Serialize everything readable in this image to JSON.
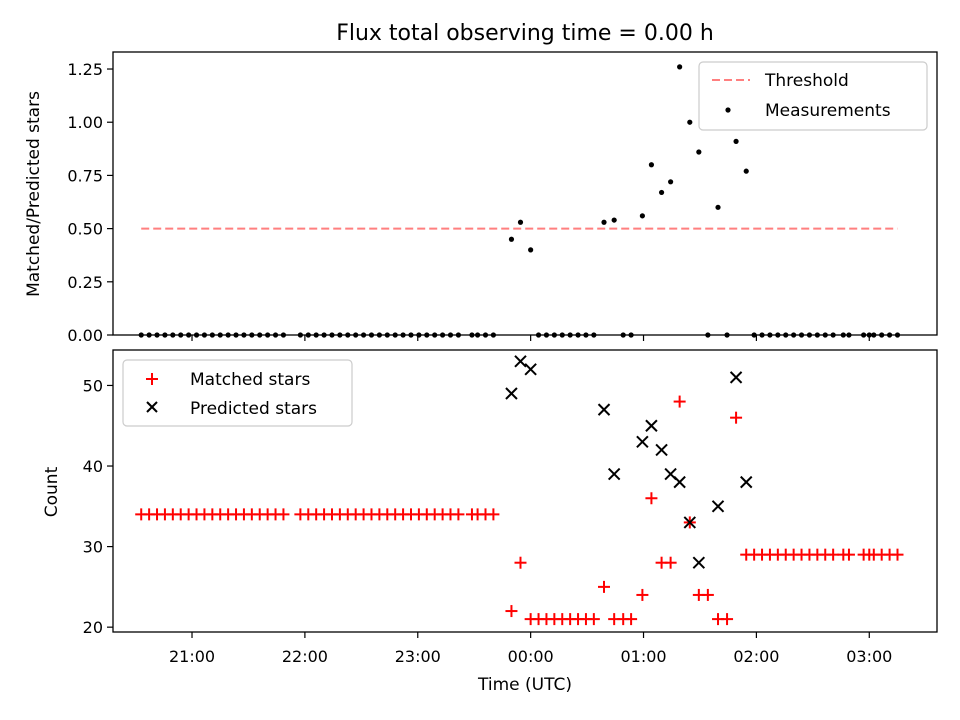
{
  "figure": {
    "title": "Flux total observing time = 0.00 h"
  },
  "chart_data": [
    {
      "type": "scatter",
      "ylabel": "Matched/Predicted stars",
      "ylim": [
        0,
        1.33
      ],
      "yticks": [
        0.0,
        0.25,
        0.5,
        0.75,
        1.0,
        1.25
      ],
      "ytick_labels": [
        "0.00",
        "0.25",
        "0.50",
        "0.75",
        "1.00",
        "1.25"
      ],
      "xlim_hours": [
        20.3,
        27.6
      ],
      "legend_placement": "upper right",
      "threshold": {
        "name": "Threshold",
        "color": "#ff7f7f",
        "value": 0.5,
        "x_start": 20.55,
        "x_end": 27.25
      },
      "series": [
        {
          "name": "Measurements",
          "color": "#000000",
          "marker": "dot",
          "points": [
            [
              20.55,
              0
            ],
            [
              20.62,
              0
            ],
            [
              20.69,
              0
            ],
            [
              20.76,
              0
            ],
            [
              20.83,
              0
            ],
            [
              20.9,
              0
            ],
            [
              20.97,
              0
            ],
            [
              21.04,
              0
            ],
            [
              21.11,
              0
            ],
            [
              21.18,
              0
            ],
            [
              21.25,
              0
            ],
            [
              21.32,
              0
            ],
            [
              21.39,
              0
            ],
            [
              21.46,
              0
            ],
            [
              21.53,
              0
            ],
            [
              21.6,
              0
            ],
            [
              21.67,
              0
            ],
            [
              21.74,
              0
            ],
            [
              21.81,
              0
            ],
            [
              21.96,
              0
            ],
            [
              22.03,
              0
            ],
            [
              22.1,
              0
            ],
            [
              22.17,
              0
            ],
            [
              22.24,
              0
            ],
            [
              22.31,
              0
            ],
            [
              22.38,
              0
            ],
            [
              22.45,
              0
            ],
            [
              22.52,
              0
            ],
            [
              22.59,
              0
            ],
            [
              22.66,
              0
            ],
            [
              22.73,
              0
            ],
            [
              22.8,
              0
            ],
            [
              22.87,
              0
            ],
            [
              22.94,
              0
            ],
            [
              23.01,
              0
            ],
            [
              23.08,
              0
            ],
            [
              23.15,
              0
            ],
            [
              23.22,
              0
            ],
            [
              23.29,
              0
            ],
            [
              23.36,
              0
            ],
            [
              23.48,
              0
            ],
            [
              23.53,
              0
            ],
            [
              23.6,
              0
            ],
            [
              23.67,
              0
            ],
            [
              23.83,
              0.45
            ],
            [
              23.91,
              0.53
            ],
            [
              24.0,
              0.4
            ],
            [
              24.07,
              0
            ],
            [
              24.14,
              0
            ],
            [
              24.21,
              0
            ],
            [
              24.28,
              0
            ],
            [
              24.35,
              0
            ],
            [
              24.42,
              0
            ],
            [
              24.49,
              0
            ],
            [
              24.56,
              0
            ],
            [
              24.65,
              0.53
            ],
            [
              24.74,
              0.54
            ],
            [
              24.82,
              0
            ],
            [
              24.89,
              0
            ],
            [
              24.99,
              0.56
            ],
            [
              25.07,
              0.8
            ],
            [
              25.16,
              0.67
            ],
            [
              25.24,
              0.72
            ],
            [
              25.32,
              1.26
            ],
            [
              25.41,
              1.0
            ],
            [
              25.49,
              0.86
            ],
            [
              25.57,
              0
            ],
            [
              25.66,
              0.6
            ],
            [
              25.74,
              0
            ],
            [
              25.82,
              0.91
            ],
            [
              25.91,
              0.77
            ],
            [
              25.98,
              0
            ],
            [
              26.05,
              0
            ],
            [
              26.12,
              0
            ],
            [
              26.19,
              0
            ],
            [
              26.26,
              0
            ],
            [
              26.33,
              0
            ],
            [
              26.4,
              0
            ],
            [
              26.47,
              0
            ],
            [
              26.54,
              0
            ],
            [
              26.61,
              0
            ],
            [
              26.68,
              0
            ],
            [
              26.77,
              0
            ],
            [
              26.82,
              0
            ],
            [
              26.95,
              0
            ],
            [
              27.0,
              0
            ],
            [
              27.04,
              0
            ],
            [
              27.11,
              0
            ],
            [
              27.18,
              0
            ],
            [
              27.25,
              0
            ]
          ]
        }
      ]
    },
    {
      "type": "scatter",
      "ylabel": "Count",
      "xlabel": "Time (UTC)",
      "ylim": [
        19.4,
        54.4
      ],
      "yticks": [
        20,
        30,
        40,
        50
      ],
      "ytick_labels": [
        "20",
        "30",
        "40",
        "50"
      ],
      "xlim_hours": [
        20.3,
        27.6
      ],
      "xticks_hours": [
        21,
        22,
        23,
        24,
        25,
        26,
        27
      ],
      "xtick_labels": [
        "21:00",
        "22:00",
        "23:00",
        "00:00",
        "01:00",
        "02:00",
        "03:00"
      ],
      "legend_placement": "upper left",
      "series": [
        {
          "name": "Matched stars",
          "color": "#ff0000",
          "marker": "plus",
          "points": [
            [
              20.55,
              34
            ],
            [
              20.62,
              34
            ],
            [
              20.69,
              34
            ],
            [
              20.76,
              34
            ],
            [
              20.83,
              34
            ],
            [
              20.9,
              34
            ],
            [
              20.97,
              34
            ],
            [
              21.04,
              34
            ],
            [
              21.11,
              34
            ],
            [
              21.18,
              34
            ],
            [
              21.25,
              34
            ],
            [
              21.32,
              34
            ],
            [
              21.39,
              34
            ],
            [
              21.46,
              34
            ],
            [
              21.53,
              34
            ],
            [
              21.6,
              34
            ],
            [
              21.67,
              34
            ],
            [
              21.74,
              34
            ],
            [
              21.81,
              34
            ],
            [
              21.96,
              34
            ],
            [
              22.03,
              34
            ],
            [
              22.1,
              34
            ],
            [
              22.17,
              34
            ],
            [
              22.24,
              34
            ],
            [
              22.31,
              34
            ],
            [
              22.38,
              34
            ],
            [
              22.45,
              34
            ],
            [
              22.52,
              34
            ],
            [
              22.59,
              34
            ],
            [
              22.66,
              34
            ],
            [
              22.73,
              34
            ],
            [
              22.8,
              34
            ],
            [
              22.87,
              34
            ],
            [
              22.94,
              34
            ],
            [
              23.01,
              34
            ],
            [
              23.08,
              34
            ],
            [
              23.15,
              34
            ],
            [
              23.22,
              34
            ],
            [
              23.29,
              34
            ],
            [
              23.36,
              34
            ],
            [
              23.48,
              34
            ],
            [
              23.53,
              34
            ],
            [
              23.6,
              34
            ],
            [
              23.67,
              34
            ],
            [
              23.83,
              22
            ],
            [
              23.91,
              28
            ],
            [
              24.0,
              21
            ],
            [
              24.07,
              21
            ],
            [
              24.14,
              21
            ],
            [
              24.21,
              21
            ],
            [
              24.28,
              21
            ],
            [
              24.35,
              21
            ],
            [
              24.42,
              21
            ],
            [
              24.49,
              21
            ],
            [
              24.56,
              21
            ],
            [
              24.65,
              25
            ],
            [
              24.74,
              21
            ],
            [
              24.82,
              21
            ],
            [
              24.89,
              21
            ],
            [
              24.99,
              24
            ],
            [
              25.07,
              36
            ],
            [
              25.16,
              28
            ],
            [
              25.24,
              28
            ],
            [
              25.32,
              48
            ],
            [
              25.41,
              33
            ],
            [
              25.49,
              24
            ],
            [
              25.57,
              24
            ],
            [
              25.66,
              21
            ],
            [
              25.74,
              21
            ],
            [
              25.82,
              46
            ],
            [
              25.91,
              29
            ],
            [
              25.98,
              29
            ],
            [
              26.05,
              29
            ],
            [
              26.12,
              29
            ],
            [
              26.19,
              29
            ],
            [
              26.26,
              29
            ],
            [
              26.33,
              29
            ],
            [
              26.4,
              29
            ],
            [
              26.47,
              29
            ],
            [
              26.54,
              29
            ],
            [
              26.61,
              29
            ],
            [
              26.68,
              29
            ],
            [
              26.77,
              29
            ],
            [
              26.82,
              29
            ],
            [
              26.95,
              29
            ],
            [
              27.0,
              29
            ],
            [
              27.04,
              29
            ],
            [
              27.11,
              29
            ],
            [
              27.18,
              29
            ],
            [
              27.25,
              29
            ]
          ]
        },
        {
          "name": "Predicted stars",
          "color": "#000000",
          "marker": "x",
          "points": [
            [
              23.83,
              49
            ],
            [
              23.91,
              53
            ],
            [
              24.0,
              52
            ],
            [
              24.65,
              47
            ],
            [
              24.74,
              39
            ],
            [
              24.99,
              43
            ],
            [
              25.07,
              45
            ],
            [
              25.16,
              42
            ],
            [
              25.24,
              39
            ],
            [
              25.32,
              38
            ],
            [
              25.41,
              33
            ],
            [
              25.49,
              28
            ],
            [
              25.66,
              35
            ],
            [
              25.82,
              51
            ],
            [
              25.91,
              38
            ]
          ]
        }
      ]
    }
  ]
}
